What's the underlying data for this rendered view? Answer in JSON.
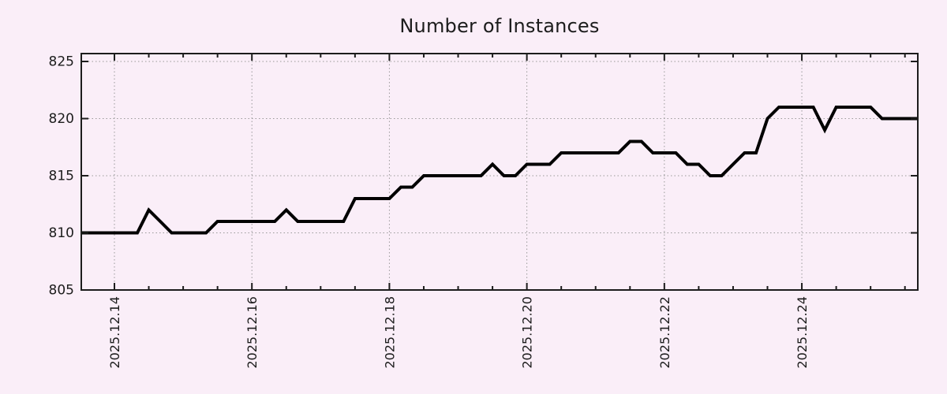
{
  "chart_data": {
    "type": "line",
    "title": "Number of Instances",
    "xlabel": "",
    "ylabel": "",
    "grid": true,
    "legend": "none",
    "xlim": [
      13.518,
      25.687
    ],
    "ylim": [
      805,
      825.69
    ],
    "y_ticks": [
      805,
      810,
      815,
      820,
      825
    ],
    "x_major_ticks": [
      14,
      16,
      18,
      20,
      22,
      24
    ],
    "x_tick_labels": [
      "2025.12.14",
      "2025.12.16",
      "2025.12.18",
      "2025.12.20",
      "2025.12.22",
      "2025.12.24"
    ],
    "x_minor_tick_step": 0.5,
    "x_units": "date (2025, December, decimal day)",
    "colors": {
      "background": "#faeef8",
      "line": "#000000",
      "grid": "#999999",
      "axis": "#1c1c1c",
      "text": "#1c1c1c"
    },
    "series": [
      {
        "name": "instances",
        "points": [
          [
            13.518,
            810
          ],
          [
            13.667,
            810
          ],
          [
            13.833,
            810
          ],
          [
            14.0,
            810
          ],
          [
            14.167,
            810
          ],
          [
            14.333,
            810
          ],
          [
            14.5,
            812
          ],
          [
            14.667,
            811
          ],
          [
            14.833,
            810
          ],
          [
            15.0,
            810
          ],
          [
            15.167,
            810
          ],
          [
            15.333,
            810
          ],
          [
            15.5,
            811
          ],
          [
            15.667,
            811
          ],
          [
            15.833,
            811
          ],
          [
            16.0,
            811
          ],
          [
            16.167,
            811
          ],
          [
            16.333,
            811
          ],
          [
            16.5,
            812
          ],
          [
            16.667,
            811
          ],
          [
            16.833,
            811
          ],
          [
            17.0,
            811
          ],
          [
            17.167,
            811
          ],
          [
            17.333,
            811
          ],
          [
            17.5,
            813
          ],
          [
            17.667,
            813
          ],
          [
            17.833,
            813
          ],
          [
            18.0,
            813
          ],
          [
            18.167,
            814
          ],
          [
            18.333,
            814
          ],
          [
            18.5,
            815
          ],
          [
            18.667,
            815
          ],
          [
            18.833,
            815
          ],
          [
            19.0,
            815
          ],
          [
            19.167,
            815
          ],
          [
            19.333,
            815
          ],
          [
            19.5,
            816
          ],
          [
            19.667,
            815
          ],
          [
            19.833,
            815
          ],
          [
            20.0,
            816
          ],
          [
            20.167,
            816
          ],
          [
            20.333,
            816
          ],
          [
            20.5,
            817
          ],
          [
            20.667,
            817
          ],
          [
            20.833,
            817
          ],
          [
            21.0,
            817
          ],
          [
            21.167,
            817
          ],
          [
            21.333,
            817
          ],
          [
            21.5,
            818
          ],
          [
            21.667,
            818
          ],
          [
            21.833,
            817
          ],
          [
            22.0,
            817
          ],
          [
            22.167,
            817
          ],
          [
            22.333,
            816
          ],
          [
            22.5,
            816
          ],
          [
            22.667,
            815
          ],
          [
            22.833,
            815
          ],
          [
            23.0,
            816
          ],
          [
            23.167,
            817
          ],
          [
            23.333,
            817
          ],
          [
            23.5,
            820
          ],
          [
            23.667,
            821
          ],
          [
            23.833,
            821
          ],
          [
            24.0,
            821
          ],
          [
            24.167,
            821
          ],
          [
            24.333,
            819
          ],
          [
            24.5,
            821
          ],
          [
            24.667,
            821
          ],
          [
            24.833,
            821
          ],
          [
            25.0,
            821
          ],
          [
            25.167,
            820
          ],
          [
            25.333,
            820
          ],
          [
            25.5,
            820
          ],
          [
            25.687,
            820
          ]
        ]
      }
    ]
  }
}
